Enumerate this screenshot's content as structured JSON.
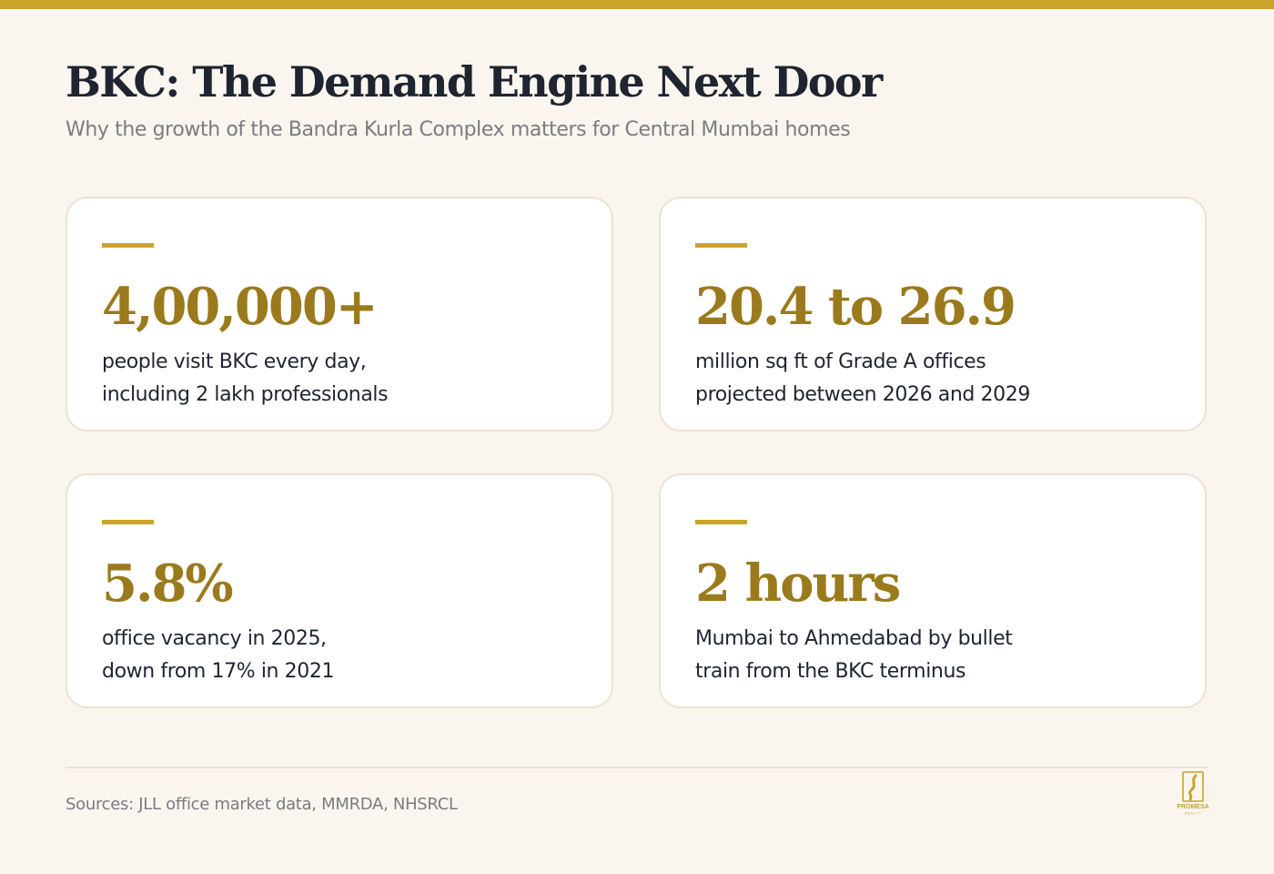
{
  "header": {
    "title": "BKC: The Demand Engine Next Door",
    "subtitle": "Why the growth of the Bandra Kurla Complex matters for Central Mumbai homes"
  },
  "cards": [
    {
      "stat": "4,00,000+",
      "desc_lines": [
        "people visit BKC every day,",
        "including 2 lakh professionals"
      ]
    },
    {
      "stat": "20.4 to 26.9",
      "desc_lines": [
        "million sq ft of Grade A offices",
        "projected between 2026 and 2029"
      ]
    },
    {
      "stat": "5.8%",
      "desc_lines": [
        "office vacancy in 2025,",
        "down from 17% in 2021"
      ]
    },
    {
      "stat": "2 hours",
      "desc_lines": [
        "Mumbai to Ahmedabad by bullet",
        "train from the BKC terminus"
      ]
    }
  ],
  "footer": {
    "sources": "Sources: JLL office market data, MMRDA, NHSRCL",
    "logo_text": "PROMESA",
    "logo_subtext": "REALTY"
  },
  "colors": {
    "background": "#faf6ef",
    "accent_gold": "#c9a42c",
    "stat_gold": "#9a7a1c",
    "text_dark": "#1e2430",
    "text_muted": "#7b7b80",
    "card_border": "#ece3d3"
  }
}
